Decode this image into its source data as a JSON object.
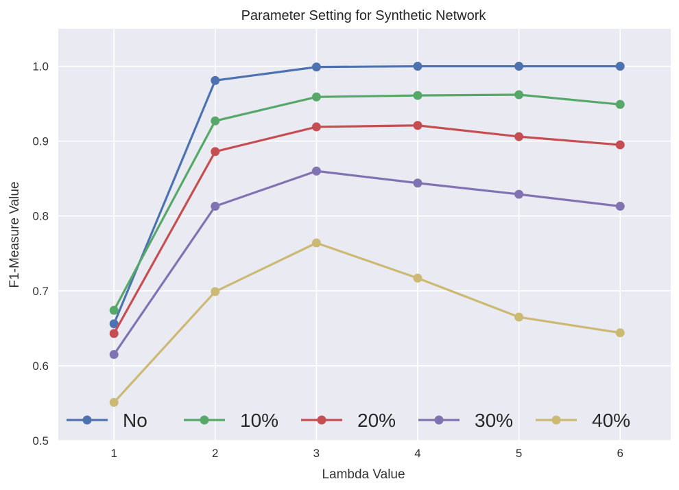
{
  "chart_data": {
    "type": "line",
    "title": "Parameter Setting for Synthetic Network",
    "xlabel": "Lambda Value",
    "ylabel": "F1-Measure Value",
    "x": [
      1,
      2,
      3,
      4,
      5,
      6
    ],
    "x_tick_labels": [
      "1",
      "2",
      "3",
      "4",
      "5",
      "6"
    ],
    "xlim": [
      0.45,
      6.5
    ],
    "ylim": [
      0.5,
      1.05
    ],
    "y_ticks": [
      0.5,
      0.6,
      0.7,
      0.8,
      0.9,
      1.0
    ],
    "y_tick_labels": [
      "0.5",
      "0.6",
      "0.7",
      "0.8",
      "0.9",
      "1.0"
    ],
    "grid": true,
    "legend_position": "bottom",
    "series": [
      {
        "name": "No",
        "color": "#4c72b0",
        "values": [
          0.656,
          0.981,
          0.999,
          1.0,
          1.0,
          1.0
        ]
      },
      {
        "name": "10%",
        "color": "#55a868",
        "values": [
          0.674,
          0.927,
          0.959,
          0.961,
          0.962,
          0.949
        ]
      },
      {
        "name": "20%",
        "color": "#c44e52",
        "values": [
          0.643,
          0.886,
          0.919,
          0.921,
          0.906,
          0.895
        ]
      },
      {
        "name": "30%",
        "color": "#8172b2",
        "values": [
          0.615,
          0.813,
          0.86,
          0.844,
          0.829,
          0.813
        ]
      },
      {
        "name": "40%",
        "color": "#ccb974",
        "values": [
          0.551,
          0.699,
          0.764,
          0.717,
          0.665,
          0.644
        ]
      }
    ]
  }
}
